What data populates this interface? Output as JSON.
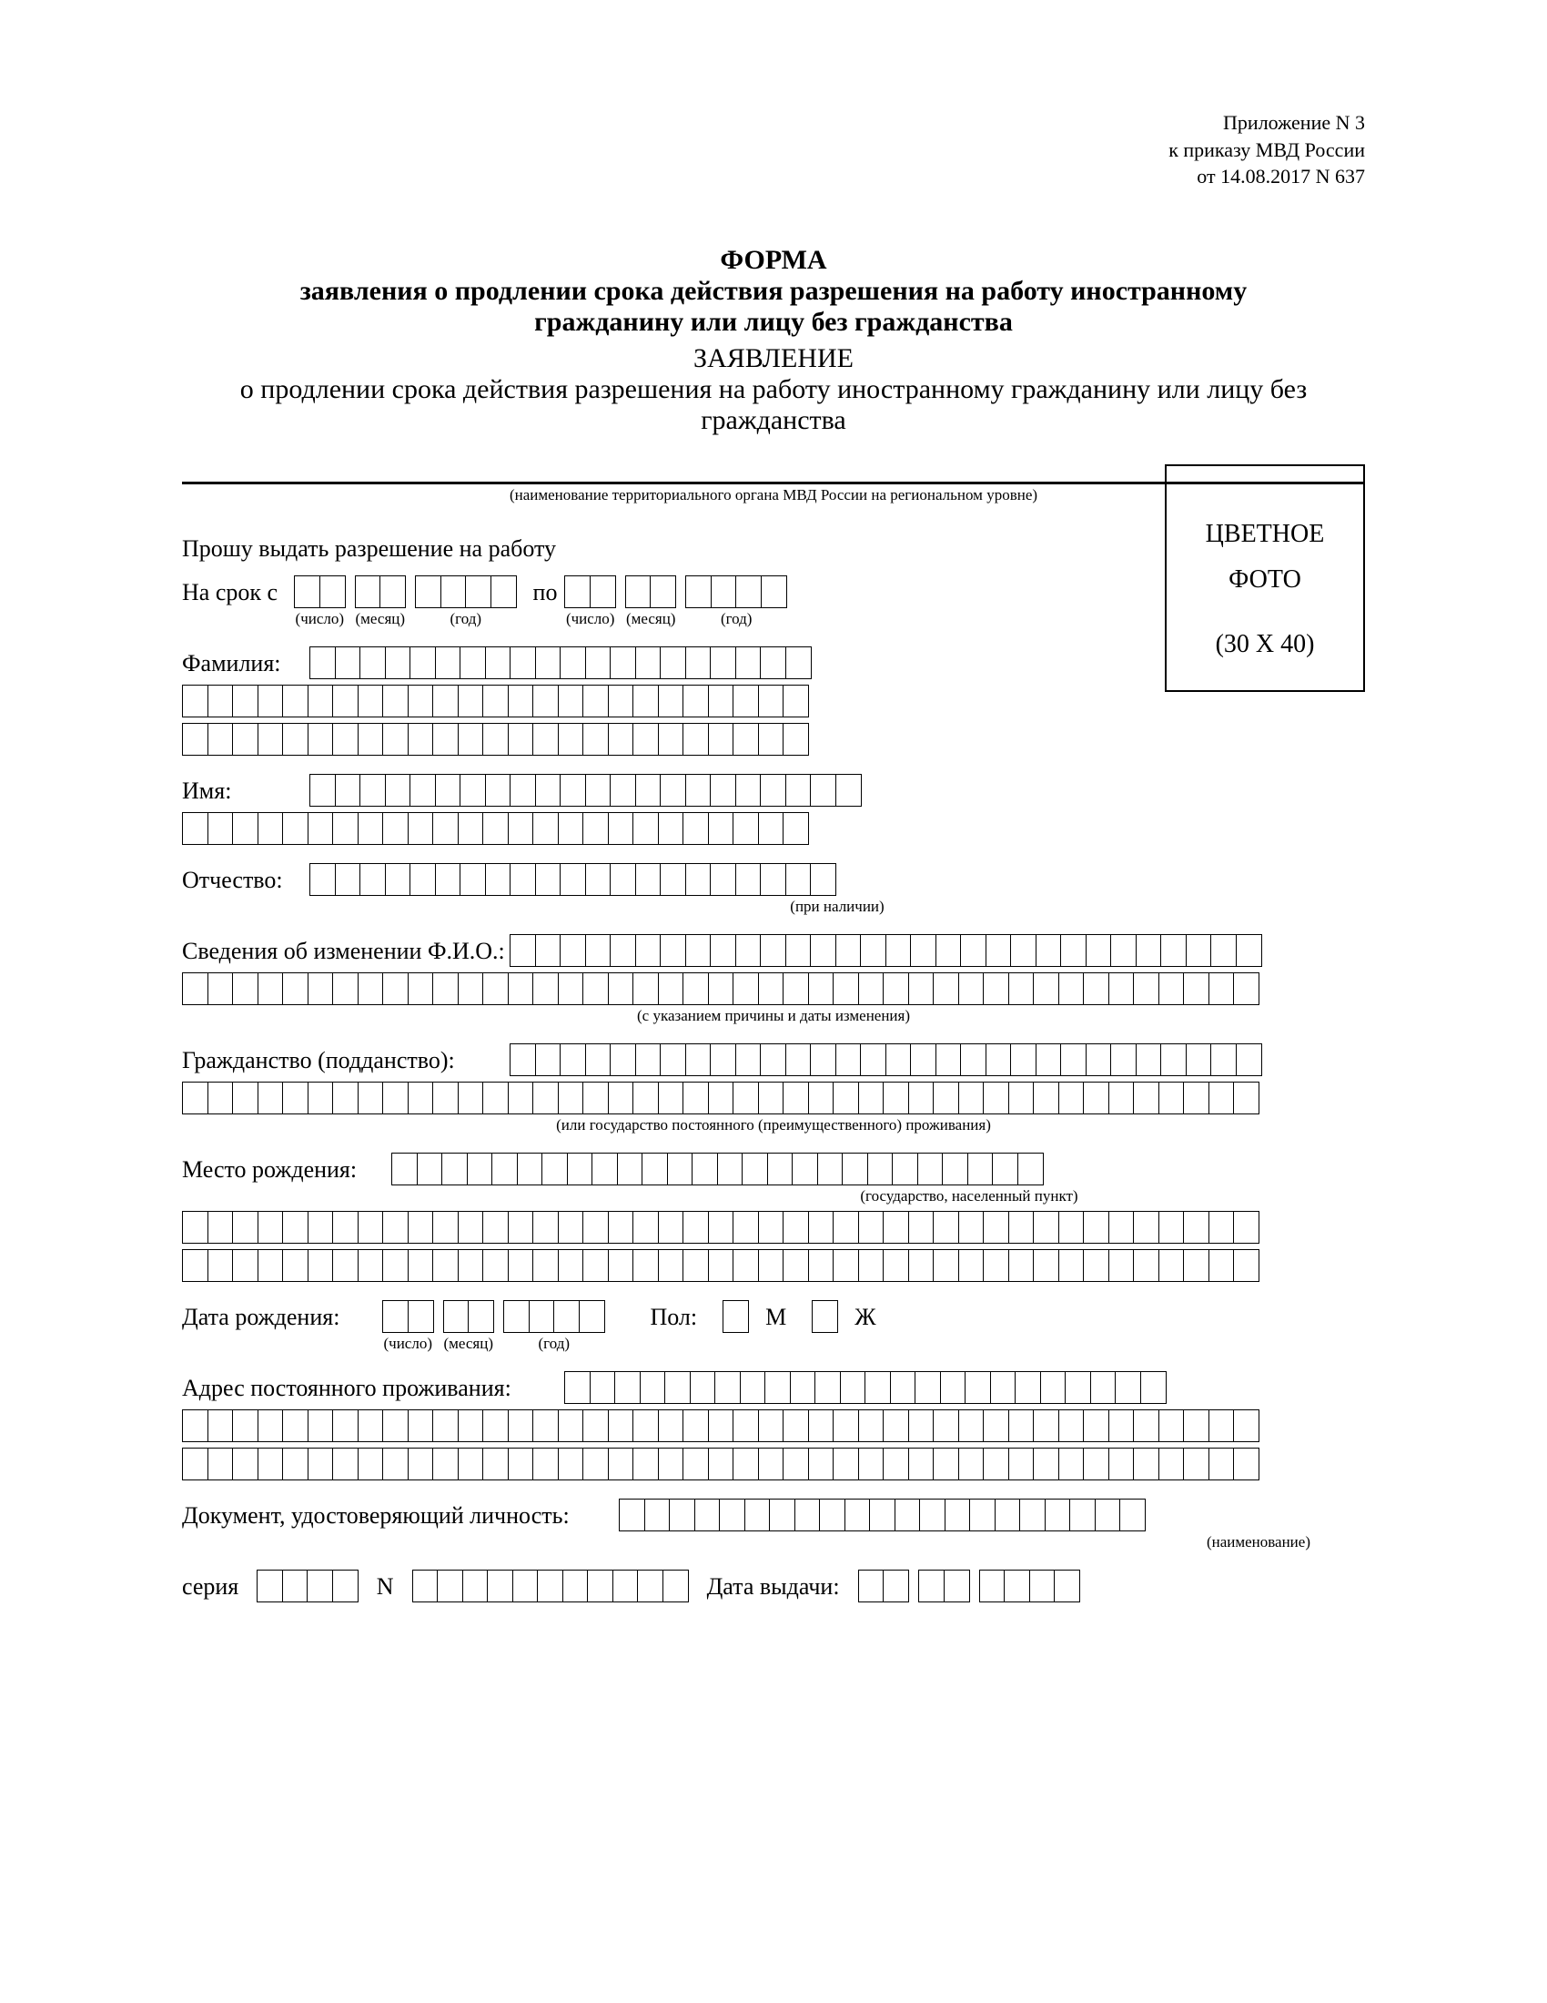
{
  "colors": {
    "text": "#000000",
    "bg": "#ffffff",
    "border": "#000000"
  },
  "topRight": {
    "line1": "Приложение N 3",
    "line2": "к приказу МВД России",
    "line3": "от 14.08.2017 N 637"
  },
  "title": {
    "form": "ФОРМА",
    "line1": "заявления о продлении срока действия разрешения на работу иностранному",
    "line2": "гражданину или лицу без гражданства",
    "application": "ЗАЯВЛЕНИЕ",
    "sub1": "о продлении срока действия разрешения на работу иностранному гражданину или лицу без",
    "sub2": "гражданства"
  },
  "lineCaption": "(наименование территориального органа МВД России на региональном уровне)",
  "request": "Прошу выдать разрешение на работу",
  "period": {
    "fromLabel": "На срок с",
    "toLabel": "по",
    "day": "(число)",
    "month": "(месяц)",
    "year": "(год)"
  },
  "photo": {
    "line1": "ЦВЕТНОЕ",
    "line2": "ФОТО",
    "line3": "(30 X 40)"
  },
  "labels": {
    "surname": "Фамилия:",
    "name": "Имя:",
    "patronymic": "Отчество:",
    "patronymicNote": "(при наличии)",
    "fioChange": "Сведения об изменении Ф.И.О.:",
    "fioChangeNote": "(с указанием причины и даты изменения)",
    "citizenship": "Гражданство (подданство):",
    "citizenshipNote": "(или государство постоянного (преимущественного) проживания)",
    "birthPlace": "Место рождения:",
    "birthPlaceNote": "(государство, населенный пункт)",
    "birthDate": "Дата рождения:",
    "sex": "Пол:",
    "sexM": "М",
    "sexF": "Ж",
    "address": "Адрес постоянного проживания:",
    "idDoc": "Документ, удостоверяющий личность:",
    "idDocNote": "(наименование)",
    "series": "серия",
    "number": "N",
    "issueDate": "Дата выдачи:"
  },
  "cellCounts": {
    "surnameTopLeft": 20,
    "surnameRow2": 25,
    "surnameRow3": 25,
    "nameTop": 22,
    "nameRow2": 25,
    "patronymicTop": 21,
    "fioChangeTop": 30,
    "fullRow": 43,
    "citizenshipTop": 30,
    "birthPlaceTop": 26,
    "addressTop": 24,
    "idDocTop": 21,
    "seriesCells": 4,
    "numberCells": 11,
    "dateDay": 2,
    "dateMonth": 2,
    "dateYear": 4
  }
}
